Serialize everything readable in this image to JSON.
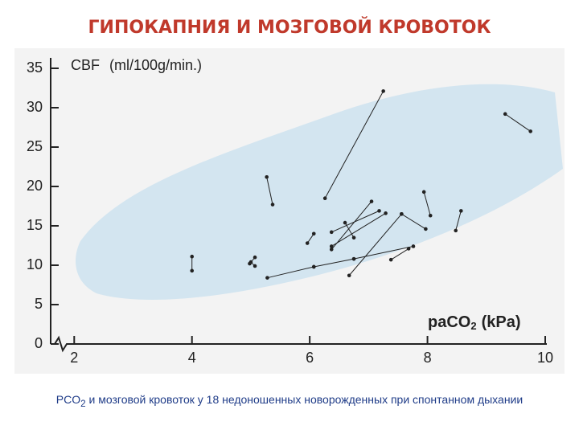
{
  "chart_data": {
    "type": "paired-scatter",
    "title": "ГИПОКАПНИЯ И МОЗГОВОЙ КРОВОТОК",
    "y_label": {
      "main": "CBF",
      "unit": "(ml/100g/min.)"
    },
    "x_label": {
      "base": "paCO",
      "sub": "2",
      "unit": "(kPa)"
    },
    "caption": {
      "base": "PCO",
      "sub": "2",
      "rest": " и мозговой кровоток у 18 недоношенных новорожденных при спонтанном дыхании"
    },
    "xlim": [
      1.6,
      10
    ],
    "xticks": [
      2,
      4,
      6,
      8,
      10
    ],
    "ylim": [
      0,
      35
    ],
    "yticks": [
      0,
      5,
      10,
      15,
      20,
      25,
      30,
      35
    ],
    "color": "#222222",
    "pairs": [
      {
        "x": [
          4.0,
          4.0
        ],
        "y": [
          11.1,
          9.3
        ]
      },
      {
        "x": [
          4.98,
          5.07
        ],
        "y": [
          10.2,
          11.0
        ]
      },
      {
        "x": [
          5.0,
          5.07
        ],
        "y": [
          10.4,
          9.9
        ]
      },
      {
        "x": [
          5.27,
          5.37
        ],
        "y": [
          21.2,
          17.7
        ]
      },
      {
        "x": [
          5.28,
          6.07
        ],
        "y": [
          8.4,
          9.8
        ]
      },
      {
        "x": [
          6.26,
          7.25
        ],
        "y": [
          18.5,
          32.1
        ]
      },
      {
        "x": [
          5.96,
          6.07
        ],
        "y": [
          12.8,
          14.0
        ]
      },
      {
        "x": [
          6.37,
          7.18
        ],
        "y": [
          14.2,
          16.9
        ]
      },
      {
        "x": [
          6.37,
          7.05
        ],
        "y": [
          12.0,
          18.1
        ]
      },
      {
        "x": [
          6.37,
          7.29
        ],
        "y": [
          12.4,
          16.6
        ]
      },
      {
        "x": [
          6.07,
          6.75
        ],
        "y": [
          9.8,
          10.8
        ]
      },
      {
        "x": [
          6.67,
          7.56
        ],
        "y": [
          8.7,
          16.5
        ]
      },
      {
        "x": [
          6.75,
          7.76
        ],
        "y": [
          10.8,
          12.4
        ]
      },
      {
        "x": [
          7.38,
          7.68
        ],
        "y": [
          10.7,
          12.1
        ]
      },
      {
        "x": [
          7.94,
          8.05
        ],
        "y": [
          19.3,
          16.3
        ]
      },
      {
        "x": [
          7.56,
          7.97
        ],
        "y": [
          16.5,
          14.6
        ]
      },
      {
        "x": [
          8.48,
          8.57
        ],
        "y": [
          14.4,
          16.9
        ]
      },
      {
        "x": [
          9.32,
          9.75
        ],
        "y": [
          29.2,
          27.0
        ]
      },
      {
        "x": [
          6.6,
          6.75
        ],
        "y": [
          15.4,
          13.5
        ]
      }
    ]
  }
}
